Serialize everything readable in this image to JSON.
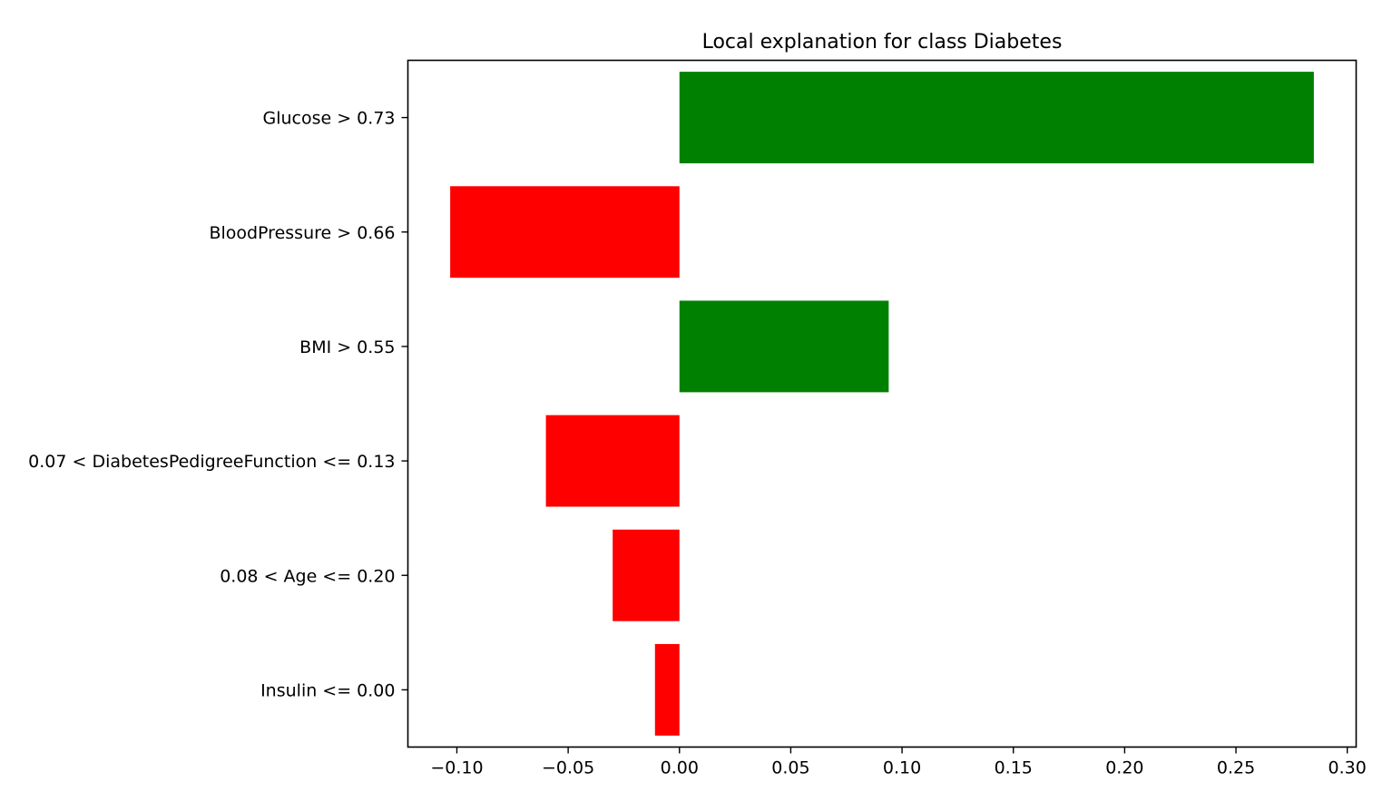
{
  "chart_data": {
    "type": "bar",
    "orientation": "horizontal",
    "title": "Local explanation for class Diabetes",
    "xlabel": "",
    "ylabel": "",
    "xlim": [
      -0.122,
      0.304
    ],
    "xticks": [
      -0.1,
      -0.05,
      0.0,
      0.05,
      0.1,
      0.15,
      0.2,
      0.25,
      0.3
    ],
    "xtick_labels": [
      "−0.10",
      "−0.05",
      "0.00",
      "0.05",
      "0.10",
      "0.15",
      "0.20",
      "0.25",
      "0.30"
    ],
    "grid": false,
    "legend": "none",
    "categories": [
      "Glucose > 0.73",
      "BloodPressure > 0.66",
      "BMI > 0.55",
      "0.07 < DiabetesPedigreeFunction <= 0.13",
      "0.08 < Age <= 0.20",
      "Insulin <= 0.00"
    ],
    "values": [
      0.285,
      -0.103,
      0.094,
      -0.06,
      -0.03,
      -0.011
    ],
    "colors": {
      "positive": "#008000",
      "negative": "#ff0000"
    }
  }
}
